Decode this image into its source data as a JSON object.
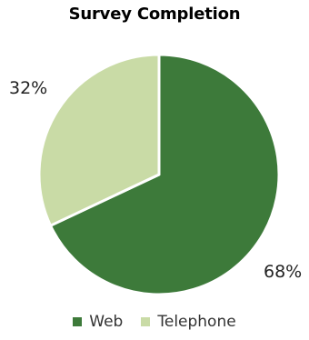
{
  "chart_data": {
    "type": "pie",
    "title": "Survey Completion",
    "categories": [
      "Web",
      "Telephone"
    ],
    "values": [
      68,
      32
    ],
    "value_labels": [
      "68%",
      "32%"
    ],
    "colors": [
      "#3d7a3a",
      "#c9dba6"
    ],
    "slice_border_color": "#ffffff",
    "start_angle_deg": 0,
    "direction": "clockwise",
    "legend_position": "bottom"
  }
}
